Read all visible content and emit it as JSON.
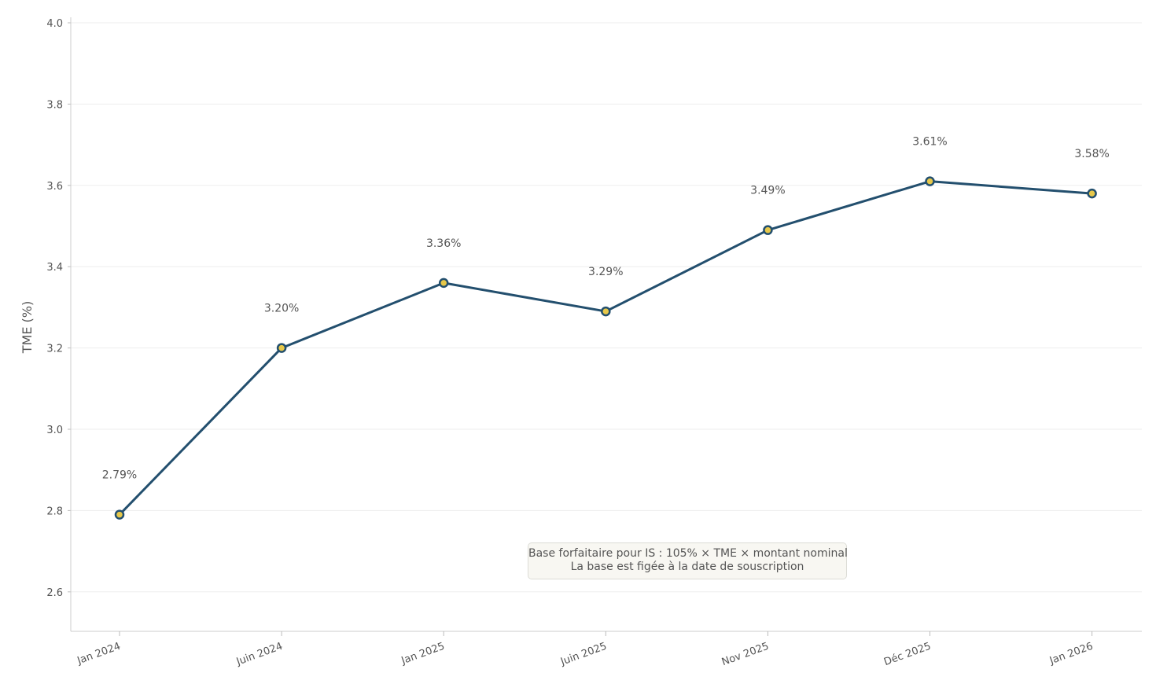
{
  "chart_data": {
    "type": "line",
    "title": "",
    "xlabel": "",
    "ylabel": "TME (%)",
    "categories": [
      "Jan 2024",
      "Juin 2024",
      "Jan 2025",
      "Juin 2025",
      "Nov 2025",
      "Déc 2025",
      "Jan 2026"
    ],
    "series": [
      {
        "name": "TME",
        "values": [
          2.79,
          3.2,
          3.36,
          3.29,
          3.49,
          3.61,
          3.58
        ],
        "data_labels": [
          "2.79%",
          "3.20%",
          "3.36%",
          "3.29%",
          "3.49%",
          "3.61%",
          "3.58%"
        ],
        "line_color": "#234f6e",
        "marker_color": "#e7c84a"
      }
    ],
    "ylim": [
      2.5,
      4.0
    ],
    "yticks": [
      2.6,
      2.8,
      3.0,
      3.2,
      3.4,
      3.6,
      3.8,
      4.0
    ],
    "ytick_labels": [
      "2.6",
      "2.8",
      "3.0",
      "3.2",
      "3.4",
      "3.6",
      "3.8",
      "4.0"
    ],
    "grid": true,
    "annotation": {
      "lines": [
        "Base forfaitaire pour IS : 105% × TME × montant nominal",
        "La base est figée à la date de souscription"
      ]
    }
  }
}
